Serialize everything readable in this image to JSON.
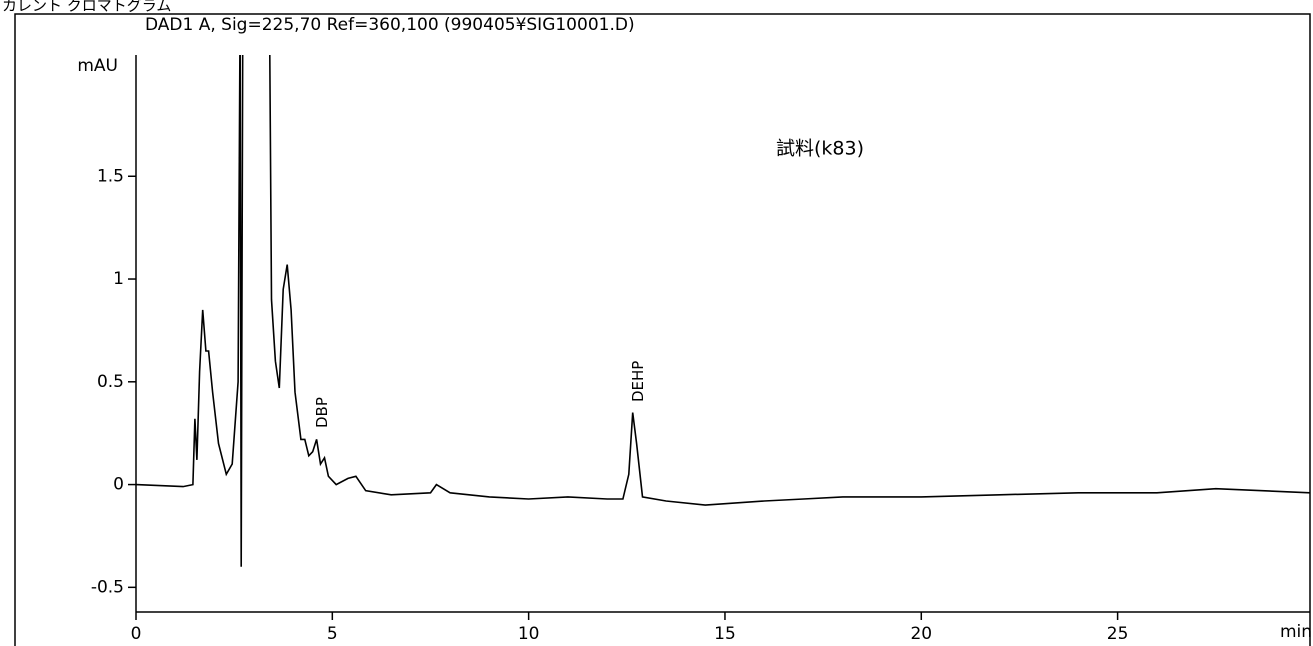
{
  "chart_data": {
    "type": "line",
    "title": "カレント クロマトグラム",
    "subtitle": "DAD1 A, Sig=225,70 Ref=360,100 (990405¥SIG10001.D)",
    "y_label": "mAU",
    "x_label": "min",
    "annotation": "試料(k83)",
    "peaks": [
      {
        "name": "DBP",
        "time": 4.6
      },
      {
        "name": "DEHP",
        "time": 12.65
      }
    ],
    "xlim": [
      0,
      29.9
    ],
    "ylim": [
      -0.62,
      2.09
    ],
    "xticks": [
      0,
      5,
      10,
      15,
      20,
      25
    ],
    "yticks": [
      -0.5,
      0,
      0.5,
      1,
      1.5
    ],
    "x": [
      0,
      1.2,
      1.45,
      1.5,
      1.55,
      1.62,
      1.7,
      1.78,
      1.85,
      1.95,
      2.1,
      2.3,
      2.45,
      2.6,
      2.65,
      2.68,
      2.72,
      3.4,
      3.45,
      3.55,
      3.65,
      3.75,
      3.85,
      3.95,
      4.05,
      4.2,
      4.3,
      4.4,
      4.5,
      4.6,
      4.7,
      4.8,
      4.9,
      5.1,
      5.4,
      5.6,
      5.85,
      6.5,
      7.5,
      7.65,
      8.0,
      9.0,
      10.0,
      11.0,
      12.0,
      12.4,
      12.55,
      12.65,
      12.75,
      12.9,
      13.5,
      14.5,
      16,
      17,
      18,
      20,
      22,
      24,
      26,
      27.5,
      29.9
    ],
    "series": [
      {
        "name": "DAD1 A",
        "color": "#000000",
        "values": [
          0.0,
          -0.01,
          0.0,
          0.32,
          0.12,
          0.55,
          0.85,
          0.65,
          0.65,
          0.45,
          0.2,
          0.05,
          0.1,
          0.5,
          2.3,
          -0.4,
          2.3,
          2.3,
          0.9,
          0.6,
          0.47,
          0.95,
          1.07,
          0.85,
          0.45,
          0.22,
          0.22,
          0.14,
          0.16,
          0.22,
          0.1,
          0.13,
          0.04,
          0.0,
          0.03,
          0.04,
          -0.03,
          -0.05,
          -0.04,
          0.0,
          -0.04,
          -0.06,
          -0.07,
          -0.06,
          -0.07,
          -0.07,
          0.05,
          0.35,
          0.2,
          -0.06,
          -0.08,
          -0.1,
          -0.08,
          -0.07,
          -0.06,
          -0.06,
          -0.05,
          -0.04,
          -0.04,
          -0.02,
          -0.04
        ]
      }
    ]
  }
}
